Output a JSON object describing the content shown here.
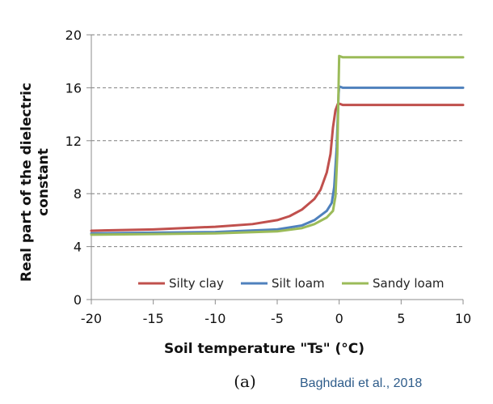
{
  "chart_data": {
    "type": "line",
    "title": "",
    "xlabel": "Soil temperature \"Ts\" (°C)",
    "ylabel": "Real part of the dielectric constant",
    "ylabel_lines": [
      "Real part of the dielectric",
      "constant"
    ],
    "xlim": [
      -20,
      10
    ],
    "ylim": [
      0,
      20
    ],
    "xticks": [
      "-20",
      "-15",
      "-10",
      "-5",
      "0",
      "5",
      "10"
    ],
    "yticks": [
      "0",
      "4",
      "8",
      "12",
      "16",
      "20"
    ],
    "grid": "horizontal dashed",
    "legend_position": "bottom inside",
    "series": [
      {
        "name": "Silty clay",
        "color": "#c0504d",
        "points": [
          [
            -20,
            5.2
          ],
          [
            -15,
            5.3
          ],
          [
            -10,
            5.5
          ],
          [
            -7,
            5.7
          ],
          [
            -5,
            6.0
          ],
          [
            -4,
            6.3
          ],
          [
            -3,
            6.8
          ],
          [
            -2,
            7.6
          ],
          [
            -1.5,
            8.3
          ],
          [
            -1,
            9.6
          ],
          [
            -0.7,
            11.0
          ],
          [
            -0.5,
            13.0
          ],
          [
            -0.3,
            14.3
          ],
          [
            -0.1,
            14.8
          ],
          [
            0,
            14.8
          ],
          [
            0.3,
            14.7
          ],
          [
            10,
            14.7
          ]
        ]
      },
      {
        "name": "Silt loam",
        "color": "#4f81bd",
        "points": [
          [
            -20,
            5.0
          ],
          [
            -15,
            5.05
          ],
          [
            -10,
            5.1
          ],
          [
            -5,
            5.3
          ],
          [
            -3,
            5.6
          ],
          [
            -2,
            6.0
          ],
          [
            -1,
            6.7
          ],
          [
            -0.6,
            7.3
          ],
          [
            -0.4,
            8.5
          ],
          [
            -0.2,
            11.5
          ],
          [
            -0.05,
            15.5
          ],
          [
            0,
            16.1
          ],
          [
            0.3,
            16.0
          ],
          [
            10,
            16.0
          ]
        ]
      },
      {
        "name": "Sandy loam",
        "color": "#9bbb59",
        "points": [
          [
            -20,
            4.9
          ],
          [
            -15,
            4.95
          ],
          [
            -10,
            5.0
          ],
          [
            -5,
            5.15
          ],
          [
            -3,
            5.4
          ],
          [
            -2,
            5.7
          ],
          [
            -1,
            6.2
          ],
          [
            -0.5,
            6.7
          ],
          [
            -0.3,
            7.8
          ],
          [
            -0.15,
            11.0
          ],
          [
            -0.05,
            16.0
          ],
          [
            0,
            18.4
          ],
          [
            0.3,
            18.3
          ],
          [
            10,
            18.3
          ]
        ]
      }
    ]
  },
  "caption": {
    "panel": "(a)",
    "credit": "Baghdadi et al., 2018"
  }
}
